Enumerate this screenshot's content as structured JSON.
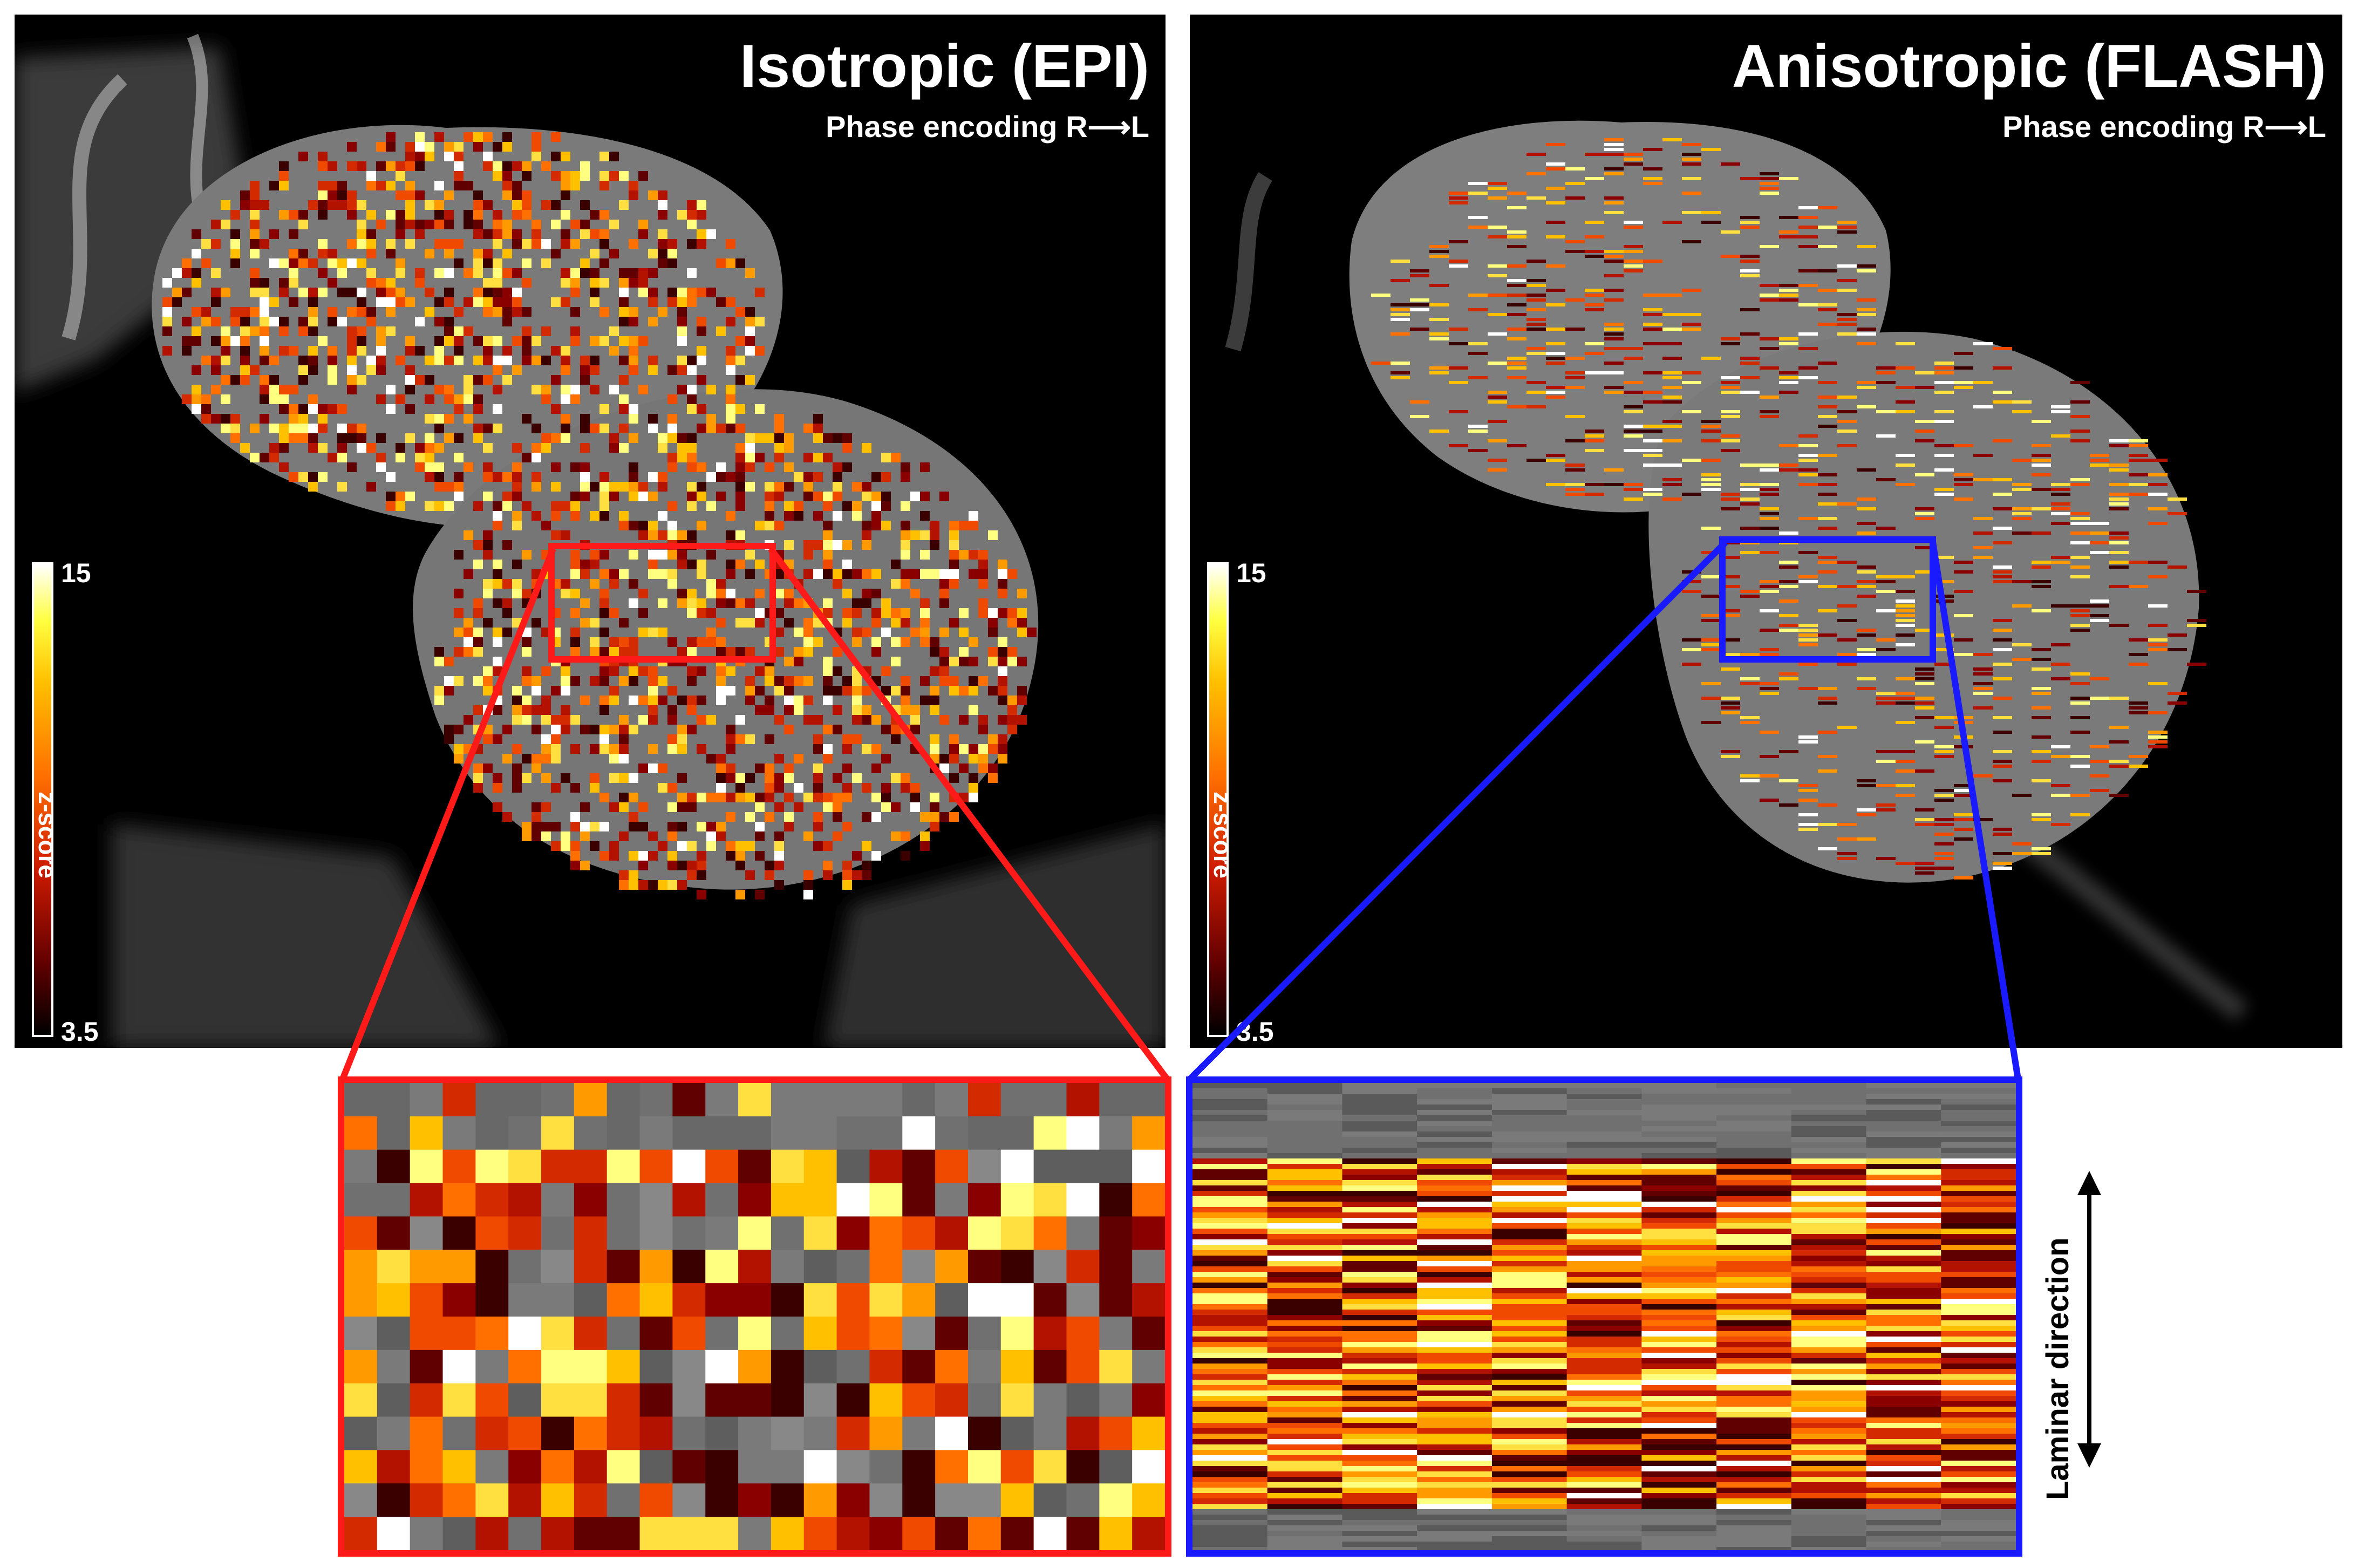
{
  "panels": {
    "left": {
      "title": "Isotropic (EPI)",
      "subtitle": "Phase encoding R⟶L"
    },
    "right": {
      "title": "Anisotropic (FLASH)",
      "subtitle": "Phase encoding R⟶L"
    }
  },
  "colorbar": {
    "label": "z-score",
    "max": "15",
    "min": "3.5"
  },
  "insets": {
    "left_color": "#ff1a1a",
    "right_color": "#1a1aff"
  },
  "annotation": {
    "laminar_label": "Laminar direction"
  },
  "colors": {
    "background": "#000000",
    "hot_low": "#600000",
    "hot_mid": "#ff7000",
    "hot_high": "#ffffff"
  }
}
